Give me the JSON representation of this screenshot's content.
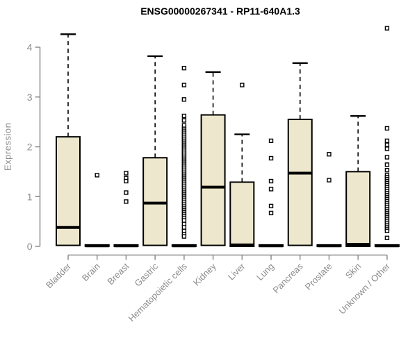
{
  "chart_data": {
    "type": "boxplot",
    "title": "ENSG00000267341 - RP11-640A1.3",
    "ylabel": "Expression",
    "xlabel": "",
    "ylim": [
      0,
      4.5
    ],
    "yticks": [
      0,
      1,
      2,
      3,
      4
    ],
    "ytick_labels": [
      "0",
      "1",
      "2",
      "3",
      "4"
    ],
    "grid": false,
    "legend": "none",
    "categories": [
      "Bladder",
      "Brain",
      "Breast",
      "Gastric",
      "Hematopoietic cells",
      "Kidney",
      "Liver",
      "Lung",
      "Pancreas",
      "Prostate",
      "Skin",
      "Unknown / Other"
    ],
    "series": [
      {
        "category": "Bladder",
        "whisker_low": 0,
        "q1": 0.02,
        "median": 0.38,
        "q3": 2.2,
        "whisker_high": 4.26,
        "outliers": []
      },
      {
        "category": "Brain",
        "whisker_low": 0,
        "q1": 0,
        "median": 0.01,
        "q3": 0.03,
        "whisker_high": 0.03,
        "outliers": [
          1.43
        ]
      },
      {
        "category": "Breast",
        "whisker_low": 0,
        "q1": 0,
        "median": 0.01,
        "q3": 0.03,
        "whisker_high": 0.03,
        "outliers": [
          1.47,
          1.37,
          1.31,
          1.08,
          0.9
        ]
      },
      {
        "category": "Gastric",
        "whisker_low": 0,
        "q1": 0.02,
        "median": 0.87,
        "q3": 1.78,
        "whisker_high": 3.82,
        "outliers": []
      },
      {
        "category": "Hematopoietic cells",
        "whisker_low": 0,
        "q1": 0,
        "median": 0.01,
        "q3": 0.03,
        "whisker_high": 0.03,
        "outliers": [
          3.58,
          3.24,
          2.95,
          2.62,
          2.53,
          2.43,
          2.36,
          2.32,
          2.28,
          2.24,
          2.2,
          2.16,
          2.12,
          2.08,
          2.04,
          2.0,
          1.96,
          1.92,
          1.88,
          1.84,
          1.8,
          1.76,
          1.72,
          1.68,
          1.64,
          1.6,
          1.56,
          1.52,
          1.48,
          1.44,
          1.4,
          1.36,
          1.32,
          1.28,
          1.24,
          1.2,
          1.16,
          1.12,
          1.08,
          1.04,
          1.0,
          0.96,
          0.92,
          0.88,
          0.84,
          0.8,
          0.76,
          0.72,
          0.68,
          0.64,
          0.6,
          0.56,
          0.52,
          0.45,
          0.38,
          0.31,
          0.24,
          0.2
        ]
      },
      {
        "category": "Kidney",
        "whisker_low": 0,
        "q1": 0.02,
        "median": 1.19,
        "q3": 2.64,
        "whisker_high": 3.5,
        "outliers": []
      },
      {
        "category": "Liver",
        "whisker_low": 0,
        "q1": 0,
        "median": 0.03,
        "q3": 1.29,
        "whisker_high": 2.25,
        "outliers": [
          3.24
        ]
      },
      {
        "category": "Lung",
        "whisker_low": 0,
        "q1": 0,
        "median": 0.01,
        "q3": 0.03,
        "whisker_high": 0.03,
        "outliers": [
          2.12,
          1.77,
          1.31,
          1.15,
          0.81,
          0.67
        ]
      },
      {
        "category": "Pancreas",
        "whisker_low": 0,
        "q1": 0.02,
        "median": 1.47,
        "q3": 2.55,
        "whisker_high": 3.68,
        "outliers": []
      },
      {
        "category": "Prostate",
        "whisker_low": 0,
        "q1": 0,
        "median": 0.01,
        "q3": 0.03,
        "whisker_high": 0.03,
        "outliers": [
          1.85,
          1.33
        ]
      },
      {
        "category": "Skin",
        "whisker_low": 0,
        "q1": 0,
        "median": 0.04,
        "q3": 1.5,
        "whisker_high": 2.62,
        "outliers": []
      },
      {
        "category": "Unknown / Other",
        "whisker_low": 0,
        "q1": 0,
        "median": 0.01,
        "q3": 0.03,
        "whisker_high": 0.03,
        "outliers": [
          4.38,
          2.37,
          2.12,
          2.04,
          1.96,
          1.79,
          1.64,
          1.53,
          1.43,
          1.39,
          1.35,
          1.31,
          1.27,
          1.23,
          1.19,
          1.15,
          1.11,
          1.07,
          1.03,
          0.99,
          0.95,
          0.91,
          0.87,
          0.83,
          0.79,
          0.75,
          0.71,
          0.67,
          0.63,
          0.59,
          0.55,
          0.51,
          0.47,
          0.43,
          0.39,
          0.35,
          0.31,
          0.17
        ]
      }
    ],
    "colors": {
      "box_fill": "#EDE8CD",
      "box_border": "#000000",
      "median": "#000000",
      "whisker": "#000000",
      "outlier_stroke": "#000000",
      "axis": "#8C8C8C",
      "tick_label": "#8C8C8C",
      "title": "#000000",
      "background": "#FFFFFF"
    }
  }
}
